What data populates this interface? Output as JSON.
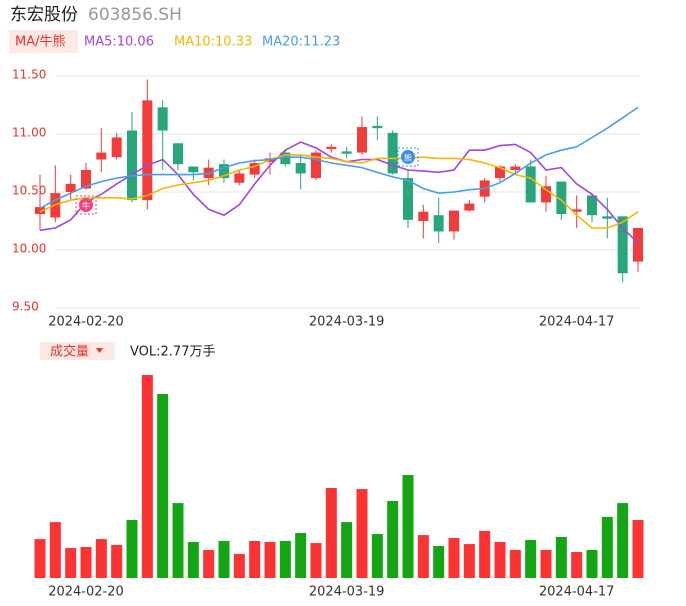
{
  "header": {
    "name": "东宏股份",
    "code": "603856.SH"
  },
  "chart_data": [
    {
      "type": "candlestick",
      "button": "MA/牛熊",
      "categories": [
        null,
        null,
        null,
        "2024-02-20",
        null,
        null,
        null,
        null,
        null,
        null,
        null,
        null,
        null,
        null,
        null,
        null,
        null,
        null,
        null,
        null,
        "2024-03-19",
        null,
        null,
        null,
        null,
        null,
        null,
        null,
        null,
        null,
        null,
        null,
        null,
        null,
        null,
        "2024-04-17",
        null,
        null,
        null,
        null
      ],
      "open": [
        10.31,
        10.28,
        10.5,
        10.53,
        10.78,
        10.8,
        11.03,
        10.43,
        11.23,
        10.92,
        10.72,
        10.62,
        10.74,
        10.58,
        10.65,
        10.76,
        10.84,
        10.75,
        10.62,
        10.87,
        10.85,
        10.84,
        11.07,
        11.01,
        10.62,
        10.25,
        10.3,
        10.16,
        10.34,
        10.46,
        10.62,
        10.69,
        10.72,
        10.41,
        10.59,
        10.33,
        10.47,
        10.29,
        10.29,
        9.9
      ],
      "high": [
        10.65,
        10.73,
        10.65,
        10.75,
        11.05,
        11.01,
        11.19,
        11.47,
        11.29,
        10.92,
        10.72,
        10.78,
        10.78,
        10.69,
        10.78,
        10.84,
        10.86,
        10.82,
        10.86,
        10.91,
        10.89,
        11.15,
        11.15,
        11.03,
        10.69,
        10.39,
        10.45,
        10.34,
        10.43,
        10.62,
        10.73,
        10.74,
        10.78,
        10.64,
        10.59,
        10.47,
        10.49,
        10.45,
        10.29,
        10.19
      ],
      "low": [
        10.17,
        10.24,
        10.43,
        10.52,
        10.67,
        10.78,
        10.41,
        10.35,
        10.69,
        10.69,
        10.6,
        10.56,
        10.58,
        10.56,
        10.62,
        10.65,
        10.72,
        10.52,
        10.6,
        10.84,
        10.79,
        10.82,
        10.95,
        10.65,
        10.19,
        10.1,
        10.06,
        10.09,
        10.33,
        10.41,
        10.59,
        10.66,
        10.41,
        10.33,
        10.26,
        10.19,
        10.24,
        10.1,
        9.72,
        9.81
      ],
      "close": [
        10.37,
        10.49,
        10.57,
        10.69,
        10.84,
        10.97,
        10.43,
        11.29,
        11.03,
        10.74,
        10.67,
        10.71,
        10.62,
        10.66,
        10.75,
        10.79,
        10.74,
        10.66,
        10.84,
        10.89,
        10.83,
        11.06,
        11.05,
        10.66,
        10.26,
        10.33,
        10.16,
        10.34,
        10.4,
        10.6,
        10.72,
        10.72,
        10.41,
        10.55,
        10.31,
        10.35,
        10.3,
        10.27,
        9.8,
        10.19
      ],
      "up_color": "#f23c3c",
      "down_color": "#26a67a",
      "ylim": [
        9.5,
        11.5
      ],
      "yticks": [
        {
          "value": 11.5,
          "label": "11.50"
        },
        {
          "value": 11.0,
          "label": "11.00"
        },
        {
          "value": 10.5,
          "label": "10.50"
        },
        {
          "value": 10.0,
          "label": "10.00"
        },
        {
          "value": 9.5,
          "label": "9.50"
        }
      ],
      "grid": true,
      "series": [
        {
          "name": "MA5:10.06",
          "color": "#a344e6",
          "values": [
            10.17,
            10.19,
            10.26,
            10.41,
            10.48,
            10.57,
            10.65,
            10.73,
            10.78,
            10.65,
            10.48,
            10.35,
            10.3,
            10.39,
            10.57,
            10.73,
            10.86,
            10.93,
            10.88,
            10.8,
            10.76,
            10.78,
            10.78,
            10.73,
            10.69,
            10.68,
            10.67,
            10.69,
            10.86,
            10.86,
            10.9,
            10.91,
            10.84,
            10.69,
            10.71,
            10.57,
            10.48,
            10.35,
            10.19,
            10.06
          ]
        },
        {
          "name": "MA10:10.33",
          "color": "#f2b705",
          "values": [
            10.33,
            10.39,
            10.43,
            10.45,
            10.45,
            10.45,
            10.44,
            10.47,
            10.53,
            10.56,
            10.58,
            10.6,
            10.64,
            10.69,
            10.72,
            10.78,
            10.82,
            10.82,
            10.8,
            10.79,
            10.76,
            10.75,
            10.79,
            10.79,
            10.79,
            10.8,
            10.79,
            10.79,
            10.78,
            10.75,
            10.71,
            10.65,
            10.62,
            10.52,
            10.43,
            10.3,
            10.19,
            10.19,
            10.24,
            10.33
          ]
        },
        {
          "name": "MA20:11.23",
          "color": "#4a9ee8",
          "values": [
            10.36,
            10.43,
            10.49,
            10.55,
            10.59,
            10.62,
            10.64,
            10.65,
            10.65,
            10.65,
            10.65,
            10.66,
            10.71,
            10.75,
            10.77,
            10.78,
            10.8,
            10.8,
            10.78,
            10.75,
            10.73,
            10.71,
            10.67,
            10.63,
            10.6,
            10.53,
            10.49,
            10.5,
            10.52,
            10.53,
            10.58,
            10.66,
            10.75,
            10.82,
            10.86,
            10.89,
            10.97,
            11.05,
            11.14,
            11.23
          ]
        }
      ],
      "annotations": [
        "牛",
        "熊"
      ]
    },
    {
      "type": "bar",
      "title": "成交量",
      "legend": "VOL:2.77万手",
      "categories": [
        null,
        null,
        null,
        "2024-02-20",
        null,
        null,
        null,
        null,
        null,
        null,
        null,
        null,
        null,
        null,
        null,
        null,
        null,
        null,
        null,
        null,
        "2024-03-19",
        null,
        null,
        null,
        null,
        null,
        null,
        null,
        null,
        null,
        null,
        null,
        null,
        null,
        null,
        "2024-04-17",
        null,
        null,
        null,
        null
      ],
      "values": [
        1.86,
        2.67,
        1.43,
        1.48,
        1.86,
        1.58,
        2.77,
        9.7,
        8.79,
        3.58,
        1.72,
        1.34,
        1.77,
        1.15,
        1.77,
        1.72,
        1.77,
        2.15,
        1.67,
        4.3,
        2.67,
        4.25,
        2.1,
        3.68,
        4.92,
        2.05,
        1.53,
        1.91,
        1.62,
        2.25,
        1.72,
        1.34,
        1.82,
        1.34,
        1.96,
        1.24,
        1.34,
        2.92,
        3.58,
        2.77
      ],
      "up_color": "#fb3333",
      "down_color": "#14a514"
    }
  ]
}
